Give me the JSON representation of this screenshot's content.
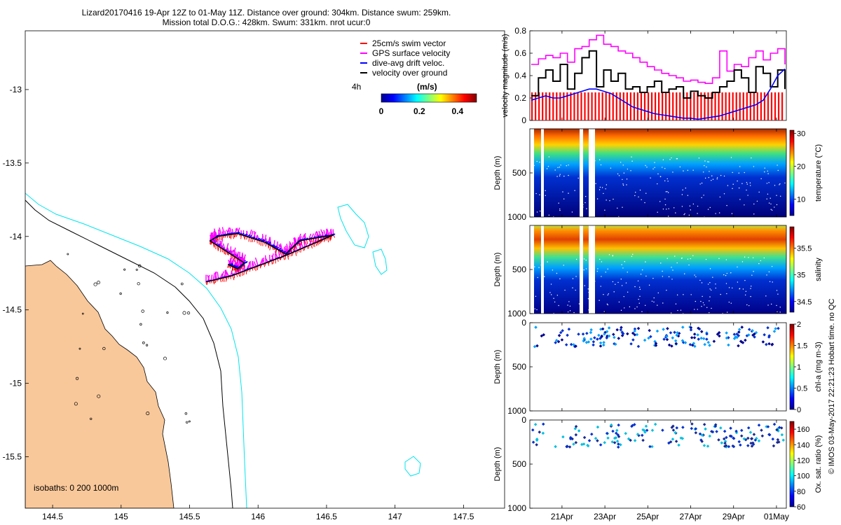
{
  "header": {
    "line1": "Lizard20170416 19-Apr 12Z to 01-May 11Z. Distance over ground: 304km. Distance swum: 259km.",
    "line2": "Mission total D.O.G.: 428km. Swum: 331km. nrot ucur:0"
  },
  "colors": {
    "land": "#f9c89a",
    "isobath_200": "#000000",
    "isobath_1000": "#00e5ee",
    "swim_vector": "#ff0000",
    "gps_velocity": "#ff00ff",
    "drift_velocity": "#0000ff",
    "ground_velocity": "#000000"
  },
  "map": {
    "lon_range": [
      144.3,
      147.8
    ],
    "lat_range": [
      -15.85,
      -12.6
    ],
    "x_ticks": [
      "144.5",
      "145",
      "145.5",
      "146",
      "146.5",
      "147",
      "147.5"
    ],
    "y_ticks": [
      "-13",
      "-13.5",
      "-14",
      "-14.5",
      "-15",
      "-15.5"
    ],
    "isobath_label": "isobaths: 0   200  1000m",
    "time_label": "4h",
    "legend": [
      {
        "label": "25cm/s swim vector",
        "color": "#ff0000"
      },
      {
        "label": "GPS surface velocity",
        "color": "#ff00ff"
      },
      {
        "label": "dive-avg drift veloc.",
        "color": "#0000ff"
      },
      {
        "label": "velocity over ground",
        "color": "#000000"
      }
    ],
    "colorbar": {
      "title": "(m/s)",
      "ticks": [
        "0",
        "0.2",
        "0.4"
      ],
      "range": [
        0,
        0.5
      ]
    },
    "track": [
      {
        "lon": 145.62,
        "lat": -14.31
      },
      {
        "lon": 145.8,
        "lat": -14.27
      },
      {
        "lon": 146.0,
        "lat": -14.2
      },
      {
        "lon": 146.2,
        "lat": -14.13
      },
      {
        "lon": 146.4,
        "lat": -14.05
      },
      {
        "lon": 146.55,
        "lat": -13.99
      },
      {
        "lon": 146.3,
        "lat": -14.03
      },
      {
        "lon": 146.2,
        "lat": -14.12
      },
      {
        "lon": 146.05,
        "lat": -14.04
      },
      {
        "lon": 145.85,
        "lat": -13.98
      },
      {
        "lon": 145.7,
        "lat": -14.0
      },
      {
        "lon": 145.65,
        "lat": -14.03
      },
      {
        "lon": 145.8,
        "lat": -14.12
      },
      {
        "lon": 145.9,
        "lat": -14.18
      },
      {
        "lon": 145.85,
        "lat": -14.22
      },
      {
        "lon": 145.78,
        "lat": -14.19
      }
    ]
  },
  "panels": {
    "x_ticks": [
      "21Apr",
      "23Apr",
      "25Apr",
      "27Apr",
      "29Apr",
      "01May"
    ],
    "time_range_days": [
      19.5,
      31.46
    ],
    "velocity": {
      "ylabel": "velocity magnitude (m/s)",
      "y_ticks": [
        "0",
        "0.2",
        "0.4",
        "0.6",
        "0.8"
      ],
      "ylim": [
        0,
        0.8
      ],
      "series": [
        {
          "color": "#ff00ff",
          "values": [
            0.5,
            0.55,
            0.58,
            0.56,
            0.6,
            0.52,
            0.64,
            0.66,
            0.72,
            0.76,
            0.68,
            0.66,
            0.62,
            0.6,
            0.56,
            0.52,
            0.48,
            0.45,
            0.42,
            0.4,
            0.38,
            0.35,
            0.36,
            0.34,
            0.33,
            0.38,
            0.62,
            0.44,
            0.5,
            0.48,
            0.56,
            0.62,
            0.54,
            0.6,
            0.64,
            0.5
          ]
        },
        {
          "color": "#000000",
          "values": [
            0.22,
            0.38,
            0.45,
            0.35,
            0.5,
            0.28,
            0.42,
            0.56,
            0.62,
            0.3,
            0.45,
            0.35,
            0.42,
            0.28,
            0.3,
            0.25,
            0.3,
            0.35,
            0.25,
            0.28,
            0.3,
            0.2,
            0.26,
            0.22,
            0.2,
            0.25,
            0.3,
            0.35,
            0.45,
            0.38,
            0.25,
            0.48,
            0.42,
            0.3,
            0.45,
            0.28
          ]
        },
        {
          "color": "#0000ff",
          "values": [
            0.18,
            0.2,
            0.22,
            0.2,
            0.2,
            0.22,
            0.24,
            0.26,
            0.28,
            0.28,
            0.26,
            0.24,
            0.2,
            0.16,
            0.12,
            0.1,
            0.08,
            0.06,
            0.05,
            0.04,
            0.03,
            0.02,
            0.02,
            0.01,
            0.02,
            0.03,
            0.04,
            0.06,
            0.08,
            0.1,
            0.12,
            0.14,
            0.18,
            0.28,
            0.4,
            0.46
          ]
        },
        {
          "color": "#ff0000",
          "values": [
            0.25,
            0.25,
            0.25,
            0.25,
            0.25,
            0.25,
            0.25,
            0.25,
            0.25,
            0.25,
            0.25,
            0.25,
            0.25,
            0.25,
            0.25,
            0.25,
            0.25,
            0.25,
            0.25,
            0.25,
            0.25,
            0.25,
            0.25,
            0.25,
            0.25,
            0.25,
            0.25,
            0.25,
            0.25,
            0.25,
            0.25,
            0.25,
            0.25,
            0.25,
            0.25,
            0.25
          ]
        }
      ]
    },
    "sections": [
      {
        "name": "temperature",
        "cbar_label": "temperature (°C)",
        "cbar_ticks": [
          10,
          20,
          30
        ],
        "cbar_range": [
          5,
          31
        ],
        "ylabel": "Depth (m)",
        "y_ticks": [
          "500",
          "1000"
        ],
        "ylim": [
          0,
          1000
        ],
        "type": "profile"
      },
      {
        "name": "salinity",
        "cbar_label": "salinity",
        "cbar_ticks": [
          34.5,
          35,
          35.5
        ],
        "cbar_range": [
          34.3,
          35.9
        ],
        "ylabel": "Depth (m)",
        "y_ticks": [
          "500",
          "1000"
        ],
        "ylim": [
          0,
          1000
        ],
        "type": "profile"
      },
      {
        "name": "chl-a",
        "cbar_label": "chl-a (mg m-3)",
        "cbar_ticks": [
          0,
          0.5,
          1,
          1.5,
          2
        ],
        "cbar_range": [
          0,
          2
        ],
        "ylabel": "Depth (m)",
        "y_ticks": [
          "0",
          "500",
          "1000"
        ],
        "ylim": [
          0,
          1000
        ],
        "type": "shallow"
      },
      {
        "name": "oxygen",
        "cbar_label": "Ox. sat. ratio (%)",
        "cbar_ticks": [
          60,
          80,
          100,
          120,
          140,
          160
        ],
        "cbar_range": [
          60,
          170
        ],
        "ylabel": "Depth (m)",
        "y_ticks": [
          "0",
          "500",
          "1000"
        ],
        "ylim": [
          0,
          1000
        ],
        "type": "shallow2"
      }
    ]
  },
  "credit": "© IMOS 03-May-2017 22:21:23 Hobart time. no QC"
}
